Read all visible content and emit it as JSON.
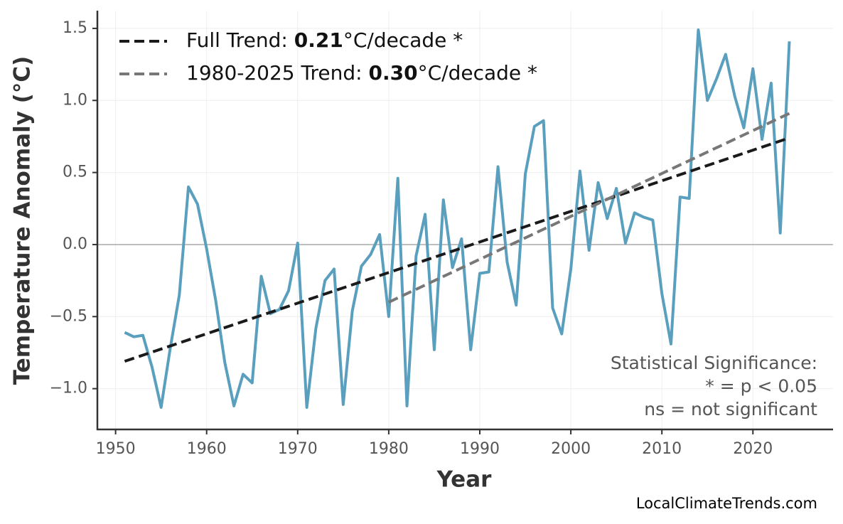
{
  "chart_data": {
    "type": "line",
    "x_label": "Year",
    "y_label": "Temperature Anomaly (°C)",
    "xlim": [
      1948,
      2028.8
    ],
    "ylim": [
      -1.283,
      1.623
    ],
    "xticks": [
      1950,
      1960,
      1970,
      1980,
      1990,
      2000,
      2010,
      2020
    ],
    "yticks": [
      {
        "value": -1.0,
        "label": "−1.0"
      },
      {
        "value": -0.5,
        "label": "−0.5"
      },
      {
        "value": 0.0,
        "label": "0.0"
      },
      {
        "value": 0.5,
        "label": "0.5"
      },
      {
        "value": 1.0,
        "label": "1.0"
      },
      {
        "value": 1.5,
        "label": "1.5"
      }
    ],
    "grid": true,
    "reference_line": 0,
    "legend_position": "upper left",
    "series": [
      {
        "color": "#5a9fbe",
        "x": [
          1951,
          1952,
          1953,
          1954,
          1955,
          1956,
          1957,
          1958,
          1959,
          1960,
          1961,
          1962,
          1963,
          1964,
          1965,
          1966,
          1967,
          1968,
          1969,
          1970,
          1971,
          1972,
          1973,
          1974,
          1975,
          1976,
          1977,
          1978,
          1979,
          1980,
          1981,
          1982,
          1983,
          1984,
          1985,
          1986,
          1987,
          1988,
          1989,
          1990,
          1991,
          1992,
          1993,
          1994,
          1995,
          1996,
          1997,
          1998,
          1999,
          2000,
          2001,
          2002,
          2003,
          2004,
          2005,
          2006,
          2007,
          2008,
          2009,
          2010,
          2011,
          2012,
          2013,
          2014,
          2015,
          2016,
          2017,
          2018,
          2019,
          2020,
          2021,
          2022,
          2023,
          2024
        ],
        "values": [
          -0.61,
          -0.64,
          -0.63,
          -0.85,
          -1.13,
          -0.72,
          -0.35,
          0.4,
          0.28,
          -0.03,
          -0.39,
          -0.82,
          -1.12,
          -0.9,
          -0.96,
          -0.22,
          -0.48,
          -0.45,
          -0.32,
          0.01,
          -1.13,
          -0.58,
          -0.25,
          -0.17,
          -1.11,
          -0.46,
          -0.15,
          -0.07,
          0.07,
          -0.5,
          0.46,
          -1.12,
          -0.08,
          0.21,
          -0.73,
          0.31,
          -0.16,
          0.04,
          -0.73,
          -0.2,
          -0.19,
          0.54,
          -0.12,
          -0.42,
          0.49,
          0.82,
          0.86,
          -0.44,
          -0.62,
          -0.17,
          0.51,
          -0.04,
          0.43,
          0.18,
          0.39,
          0.01,
          0.22,
          0.19,
          0.17,
          -0.34,
          -0.69,
          0.33,
          0.32,
          1.49,
          1.0,
          1.15,
          1.32,
          1.03,
          0.81,
          1.22,
          0.73,
          1.12,
          0.08,
          1.41
        ]
      },
      {
        "name": {
          "prefix": "Full Trend: ",
          "value": "0.21",
          "suffix": "°C/decade *"
        },
        "color": "#1a1a1a",
        "dashed": true,
        "x": [
          1951,
          2024
        ],
        "values": [
          -0.81,
          0.74
        ]
      },
      {
        "name": {
          "prefix": "1980-2025 Trend: ",
          "value": "0.30",
          "suffix": "°C/decade *"
        },
        "color": "#777777",
        "dashed": true,
        "x": [
          1980,
          2024
        ],
        "values": [
          -0.4,
          0.91
        ]
      }
    ],
    "annotation": [
      "Statistical Significance:",
      "* = p < 0.05",
      "ns = not significant"
    ],
    "source": "LocalClimateTrends.com"
  }
}
